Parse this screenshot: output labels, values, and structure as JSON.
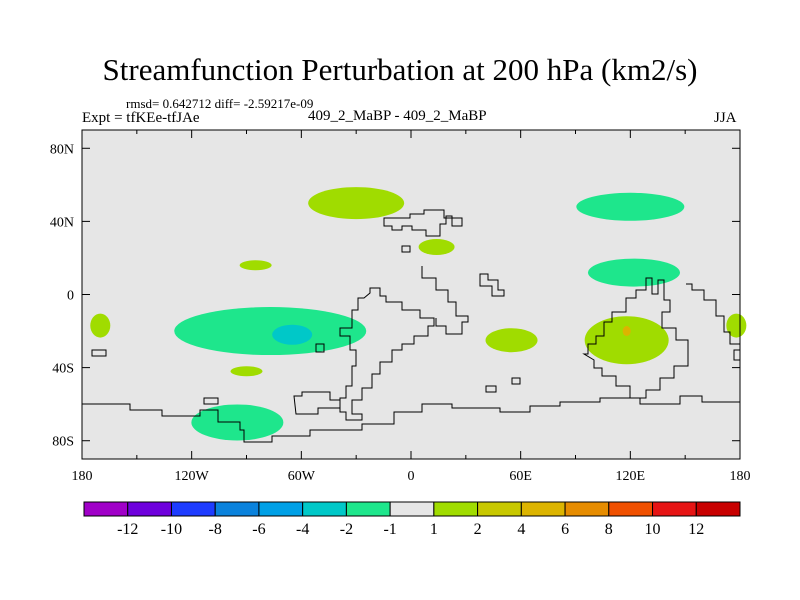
{
  "header": {
    "title": "Streamfunction Perturbation at 200 hPa (km2/s)",
    "stats": "rmsd= 0.642712 diff= -2.59217e-09",
    "experiment": "Expt = tfKEe-tfJAe",
    "comparison": "409_2_MaBP - 409_2_MaBP",
    "season": "JJA"
  },
  "chart_data": {
    "type": "heatmap",
    "title": "Streamfunction Perturbation at 200 hPa (km2/s)",
    "xlabel": "",
    "ylabel": "",
    "x_range": [
      -180,
      180
    ],
    "y_range": [
      -90,
      90
    ],
    "x_ticks": [
      "180",
      "120W",
      "60W",
      "0",
      "60E",
      "120E",
      "180"
    ],
    "y_ticks": [
      "80N",
      "40N",
      "0",
      "40S",
      "80S"
    ],
    "background_value_range": [
      -1,
      1
    ],
    "background_color": "#e6e6e6",
    "regions": [
      {
        "lon": -30,
        "lat": 50,
        "value": 1.5,
        "color": "#a0dc00"
      },
      {
        "lon": 120,
        "lat": 48,
        "value": -1.5,
        "color": "#1ee68c"
      },
      {
        "lon": 14,
        "lat": 26,
        "value": 1.5,
        "color": "#a0dc00"
      },
      {
        "lon": -85,
        "lat": 16,
        "value": 1.5,
        "color": "#a0dc00"
      },
      {
        "lon": 122,
        "lat": 12,
        "value": -1.5,
        "color": "#1ee68c"
      },
      {
        "lon": -77,
        "lat": -20,
        "value": -1.5,
        "color": "#1ee68c"
      },
      {
        "lon": -65,
        "lat": -22,
        "value": -2.5,
        "color": "#00c8c8"
      },
      {
        "lon": 55,
        "lat": -25,
        "value": 1.5,
        "color": "#a0dc00"
      },
      {
        "lon": 118,
        "lat": -25,
        "value": 1.5,
        "color": "#a0dc00"
      },
      {
        "lon": 118,
        "lat": -20,
        "value": 3,
        "color": "#dcb400"
      },
      {
        "lon": -170,
        "lat": -17,
        "value": 1.5,
        "color": "#a0dc00"
      },
      {
        "lon": 178,
        "lat": -17,
        "value": 1.5,
        "color": "#a0dc00"
      },
      {
        "lon": -90,
        "lat": -42,
        "value": 1.5,
        "color": "#a0dc00"
      },
      {
        "lon": -95,
        "lat": -70,
        "value": -1.5,
        "color": "#1ee68c"
      }
    ]
  },
  "colorbar": {
    "labels": [
      "-12",
      "-10",
      "-8",
      "-6",
      "-4",
      "-2",
      "-1",
      "1",
      "2",
      "4",
      "6",
      "8",
      "10",
      "12"
    ],
    "colors": [
      "#a000c8",
      "#6e00dc",
      "#1e3cff",
      "#0a82dc",
      "#00a0e6",
      "#00c8c8",
      "#1ee68c",
      "#e6e6e6",
      "#a0dc00",
      "#c8c800",
      "#dcb400",
      "#e68c00",
      "#f05000",
      "#e61414",
      "#c80000"
    ]
  },
  "map": {
    "background": "#e6e6e6",
    "coastline_color": "#000000",
    "axis_color": "#000000"
  }
}
